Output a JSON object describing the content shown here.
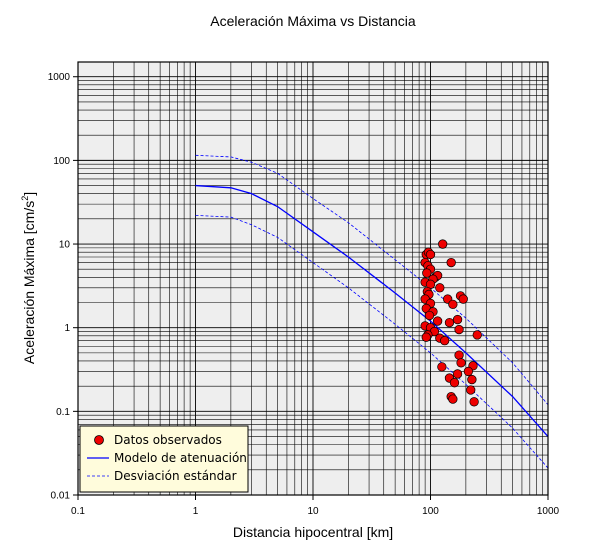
{
  "chart_data": {
    "type": "scatter",
    "title": "Aceleración Máxima vs Distancia",
    "xlabel": "Distancia hipocentral [km]",
    "ylabel_main": "Aceleración Máxima [cm/s",
    "ylabel_sup": "2",
    "ylabel_end": "]",
    "xscale": "log",
    "yscale": "log",
    "xlim": [
      0.1,
      1000
    ],
    "ylim": [
      0.01,
      1500
    ],
    "grid": true,
    "x_ticks": [
      {
        "value": 0.1,
        "label": "0.1"
      },
      {
        "value": 1,
        "label": "1"
      },
      {
        "value": 10,
        "label": "10"
      },
      {
        "value": 100,
        "label": "100"
      },
      {
        "value": 1000,
        "label": "1000"
      }
    ],
    "y_ticks": [
      {
        "value": 0.01,
        "label": "0.01"
      },
      {
        "value": 0.1,
        "label": "0.1"
      },
      {
        "value": 1,
        "label": "1"
      },
      {
        "value": 10,
        "label": "10"
      },
      {
        "value": 100,
        "label": "100"
      },
      {
        "value": 1000,
        "label": "1000"
      }
    ],
    "legend_position": "bottom-left",
    "legend": [
      {
        "label": "Datos observados",
        "kind": "marker"
      },
      {
        "label": "Modelo de atenuación",
        "kind": "solid"
      },
      {
        "label": "Desviación estándar",
        "kind": "dashed"
      }
    ],
    "colors": {
      "plot_bg": "#eeeeee",
      "grid": "#000000",
      "model": "#0000ff",
      "marker_fill": "#ee0000",
      "marker_edge": "#000000",
      "legend_bg": "#fffcdc"
    },
    "model_curve": [
      {
        "x": 1,
        "y": 50
      },
      {
        "x": 2,
        "y": 47
      },
      {
        "x": 3,
        "y": 40
      },
      {
        "x": 5,
        "y": 28
      },
      {
        "x": 10,
        "y": 14
      },
      {
        "x": 20,
        "y": 7
      },
      {
        "x": 50,
        "y": 2.6
      },
      {
        "x": 100,
        "y": 1.2
      },
      {
        "x": 200,
        "y": 0.5
      },
      {
        "x": 500,
        "y": 0.15
      },
      {
        "x": 1000,
        "y": 0.05
      }
    ],
    "std_upper": [
      {
        "x": 1,
        "y": 115
      },
      {
        "x": 2,
        "y": 110
      },
      {
        "x": 3,
        "y": 95
      },
      {
        "x": 5,
        "y": 70
      },
      {
        "x": 10,
        "y": 35
      },
      {
        "x": 20,
        "y": 18
      },
      {
        "x": 50,
        "y": 6.5
      },
      {
        "x": 100,
        "y": 3
      },
      {
        "x": 200,
        "y": 1.3
      },
      {
        "x": 500,
        "y": 0.38
      },
      {
        "x": 1000,
        "y": 0.12
      }
    ],
    "std_lower": [
      {
        "x": 1,
        "y": 22
      },
      {
        "x": 2,
        "y": 21
      },
      {
        "x": 3,
        "y": 17
      },
      {
        "x": 5,
        "y": 12
      },
      {
        "x": 10,
        "y": 6
      },
      {
        "x": 20,
        "y": 3
      },
      {
        "x": 50,
        "y": 1.1
      },
      {
        "x": 100,
        "y": 0.5
      },
      {
        "x": 200,
        "y": 0.21
      },
      {
        "x": 500,
        "y": 0.063
      },
      {
        "x": 1000,
        "y": 0.021
      }
    ],
    "points": [
      {
        "x": 127,
        "y": 10
      },
      {
        "x": 92,
        "y": 7.5
      },
      {
        "x": 96,
        "y": 8
      },
      {
        "x": 100,
        "y": 7.5
      },
      {
        "x": 90,
        "y": 6
      },
      {
        "x": 95,
        "y": 5.5
      },
      {
        "x": 150,
        "y": 6
      },
      {
        "x": 100,
        "y": 5
      },
      {
        "x": 93,
        "y": 4.5
      },
      {
        "x": 110,
        "y": 4
      },
      {
        "x": 115,
        "y": 4.2
      },
      {
        "x": 105,
        "y": 3.8
      },
      {
        "x": 90,
        "y": 3.5
      },
      {
        "x": 100,
        "y": 3.3
      },
      {
        "x": 120,
        "y": 3
      },
      {
        "x": 94,
        "y": 2.7
      },
      {
        "x": 97,
        "y": 2.5
      },
      {
        "x": 90,
        "y": 2.2
      },
      {
        "x": 140,
        "y": 2.2
      },
      {
        "x": 180,
        "y": 2.4
      },
      {
        "x": 190,
        "y": 2.2
      },
      {
        "x": 155,
        "y": 1.9
      },
      {
        "x": 100,
        "y": 1.95
      },
      {
        "x": 92,
        "y": 1.7
      },
      {
        "x": 105,
        "y": 1.55
      },
      {
        "x": 98,
        "y": 1.4
      },
      {
        "x": 115,
        "y": 1.2
      },
      {
        "x": 145,
        "y": 1.15
      },
      {
        "x": 170,
        "y": 1.25
      },
      {
        "x": 90,
        "y": 1.05
      },
      {
        "x": 100,
        "y": 1
      },
      {
        "x": 175,
        "y": 0.95
      },
      {
        "x": 108,
        "y": 0.9
      },
      {
        "x": 95,
        "y": 0.82
      },
      {
        "x": 92,
        "y": 0.77
      },
      {
        "x": 120,
        "y": 0.75
      },
      {
        "x": 132,
        "y": 0.7
      },
      {
        "x": 250,
        "y": 0.82
      },
      {
        "x": 175,
        "y": 0.47
      },
      {
        "x": 182,
        "y": 0.38
      },
      {
        "x": 230,
        "y": 0.35
      },
      {
        "x": 125,
        "y": 0.34
      },
      {
        "x": 210,
        "y": 0.3
      },
      {
        "x": 170,
        "y": 0.28
      },
      {
        "x": 145,
        "y": 0.25
      },
      {
        "x": 225,
        "y": 0.24
      },
      {
        "x": 160,
        "y": 0.22
      },
      {
        "x": 220,
        "y": 0.18
      },
      {
        "x": 150,
        "y": 0.15
      },
      {
        "x": 155,
        "y": 0.14
      },
      {
        "x": 235,
        "y": 0.13
      }
    ]
  }
}
